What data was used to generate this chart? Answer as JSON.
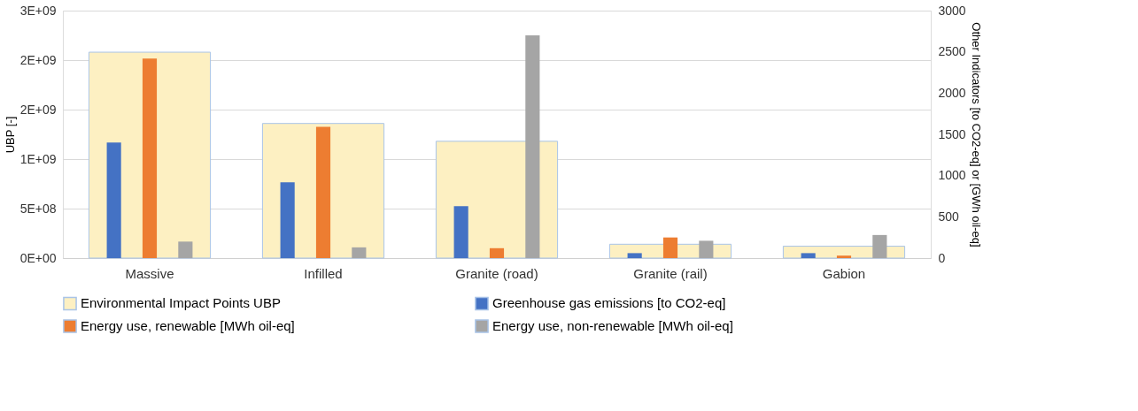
{
  "chart_data": {
    "type": "bar",
    "xlabel": null,
    "ylabel": "UBP [-]",
    "y2label": "Other Indicators [to CO2-eq] or [GWh oil-eq]",
    "categories": [
      "Massive",
      "Infilled",
      "Granite (road)",
      "Granite (rail)",
      "Gabion"
    ],
    "series": [
      {
        "name": "Environmental Impact Points UBP",
        "color": "#fdf0c2",
        "axis": "y",
        "values": [
          2080000000,
          1360000000,
          1180000000,
          140000000,
          120000000
        ]
      },
      {
        "name": "Greenhouse gas emissions  [to CO2-eq]",
        "color": "#4472c4",
        "axis": "y2",
        "values": [
          1400,
          920,
          630,
          60,
          60
        ]
      },
      {
        "name": "Energy use, renewable [MWh oil-eq]",
        "color": "#ed7d31",
        "axis": "y2",
        "values": [
          2420,
          1590,
          120,
          250,
          30
        ]
      },
      {
        "name": "Energy use, non-renewable [MWh oil-eq]",
        "color": "#a5a5a5",
        "axis": "y2",
        "values": [
          200,
          130,
          2700,
          210,
          280
        ]
      }
    ],
    "ylim": [
      0,
      2500000000
    ],
    "yticks": [
      {
        "value": 0,
        "label": "0E+00"
      },
      {
        "value": 500000000,
        "label": "5E+08"
      },
      {
        "value": 1000000000,
        "label": "1E+09"
      },
      {
        "value": 1500000000,
        "label": "2E+09"
      },
      {
        "value": 2000000000,
        "label": "2E+09"
      },
      {
        "value": 2500000000,
        "label": "3E+09"
      }
    ],
    "y2lim": [
      0,
      3000
    ],
    "y2ticks": [
      0,
      500,
      1000,
      1500,
      2000,
      2500,
      3000
    ],
    "grid": "y",
    "legend": "bottom"
  }
}
